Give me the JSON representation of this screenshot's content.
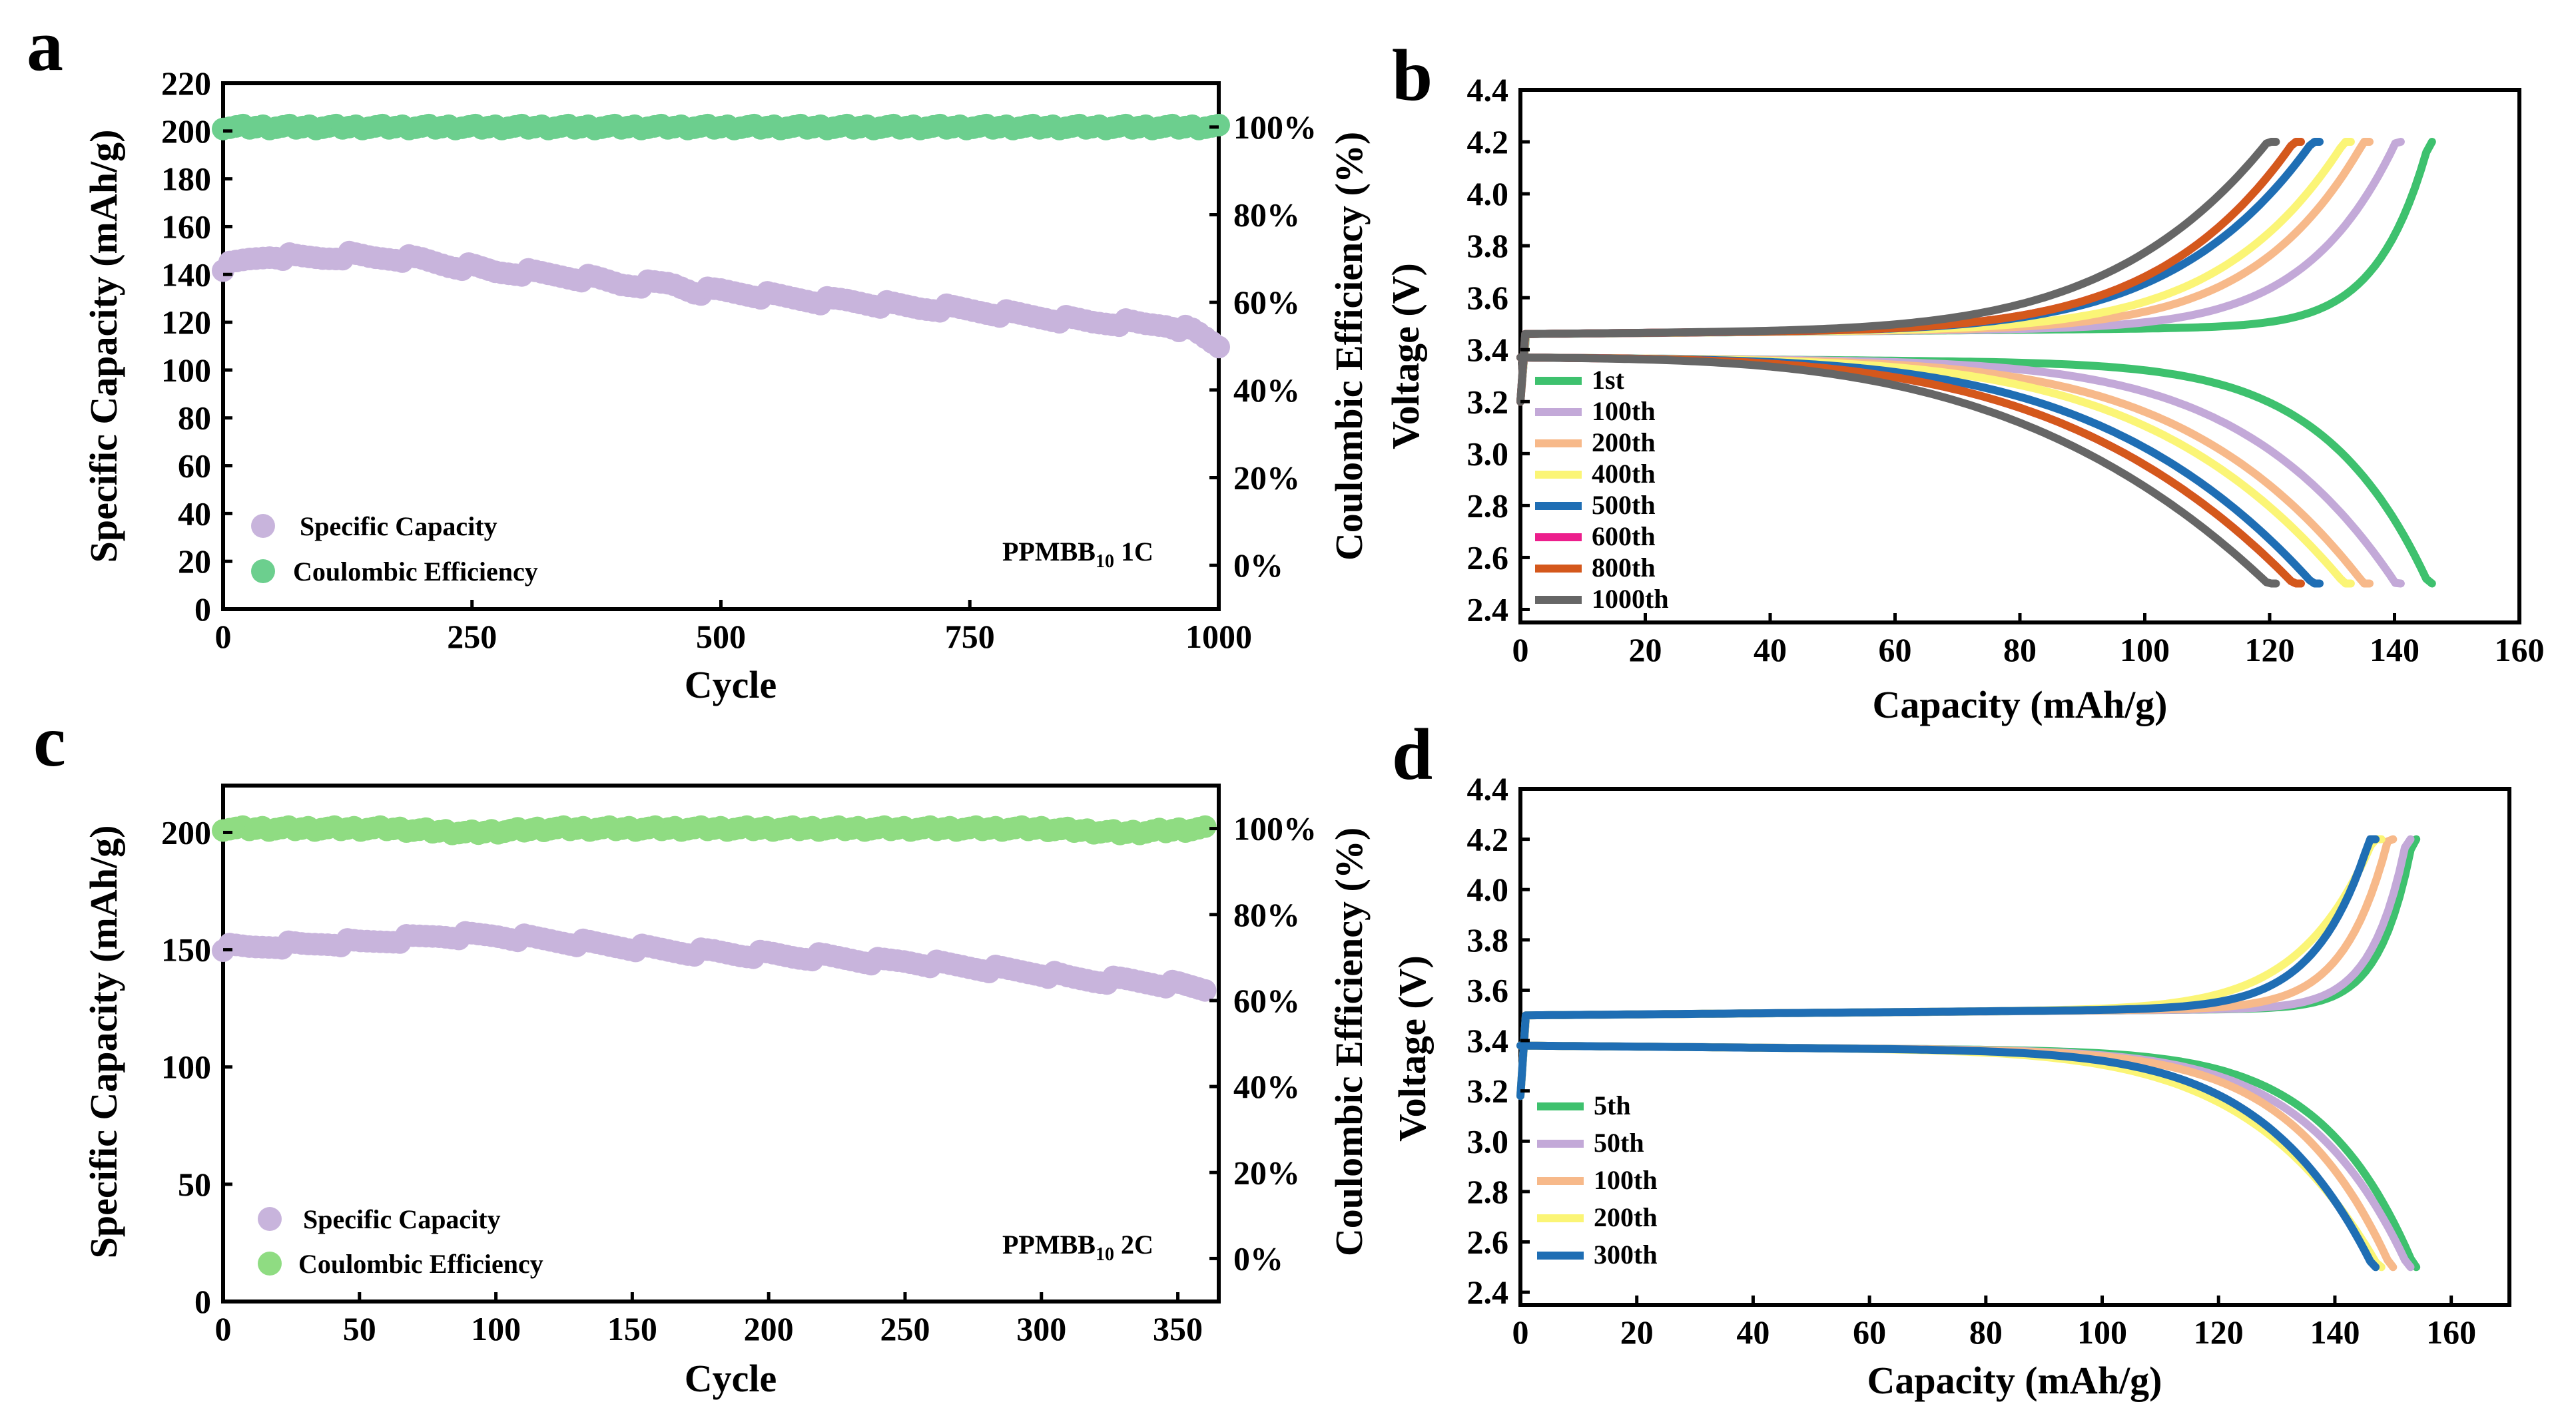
{
  "figure": {
    "panels": [
      {
        "letter": "a",
        "annotation": {
          "base": "PPMBB",
          "sub": "10",
          "tail": " 1C"
        }
      },
      {
        "letter": "b"
      },
      {
        "letter": "c",
        "annotation": {
          "base": "PPMBB",
          "sub": "10",
          "tail": " 2C"
        }
      },
      {
        "letter": "d"
      }
    ]
  },
  "chart_data": [
    {
      "panel": "a",
      "type": "scatter",
      "xlabel": "Cycle",
      "ylabel": "Specific Capacity (mAh/g)",
      "y2label": "Coulombic Efficiency (%)",
      "xlim": [
        0,
        1000
      ],
      "ylim": [
        0,
        220
      ],
      "y2lim": [
        -0.1,
        1.1
      ],
      "xticks": [
        0,
        250,
        500,
        750,
        1000
      ],
      "yticks": [
        0,
        20,
        40,
        60,
        80,
        100,
        120,
        140,
        160,
        180,
        200,
        220
      ],
      "y2ticks": [
        {
          "v": 0,
          "label": "0%"
        },
        {
          "v": 0.2,
          "label": "20%"
        },
        {
          "v": 0.4,
          "label": "40%"
        },
        {
          "v": 0.6,
          "label": "60%"
        },
        {
          "v": 0.8,
          "label": "80%"
        },
        {
          "v": 1.0,
          "label": "100%"
        }
      ],
      "series": [
        {
          "name": "Specific Capacity",
          "color": "#c8b4dc",
          "points": [
            [
              0,
              143
            ],
            [
              25,
              146
            ],
            [
              50,
              148
            ],
            [
              75,
              147
            ],
            [
              100,
              147
            ],
            [
              125,
              148
            ],
            [
              150,
              147
            ],
            [
              175,
              147
            ],
            [
              200,
              146
            ],
            [
              225,
              144
            ],
            [
              250,
              143
            ],
            [
              275,
              141
            ],
            [
              300,
              141
            ],
            [
              325,
              140
            ],
            [
              350,
              139
            ],
            [
              375,
              138
            ],
            [
              400,
              136
            ],
            [
              425,
              136
            ],
            [
              450,
              136
            ],
            [
              475,
              133
            ],
            [
              500,
              133
            ],
            [
              525,
              132
            ],
            [
              550,
              131
            ],
            [
              575,
              130
            ],
            [
              600,
              129
            ],
            [
              625,
              129
            ],
            [
              650,
              128
            ],
            [
              675,
              127
            ],
            [
              700,
              126
            ],
            [
              725,
              126
            ],
            [
              750,
              125
            ],
            [
              775,
              124
            ],
            [
              800,
              123
            ],
            [
              825,
              122
            ],
            [
              850,
              121
            ],
            [
              875,
              120
            ],
            [
              900,
              120
            ],
            [
              925,
              119
            ],
            [
              950,
              119
            ],
            [
              975,
              116
            ],
            [
              1000,
              110
            ]
          ]
        },
        {
          "name": "Coulombic Efficiency",
          "color": "#6ccf8e",
          "axis": "y2",
          "points": [
            [
              0,
              1.0
            ],
            [
              50,
              1.0
            ],
            [
              100,
              1.0
            ],
            [
              150,
              1.0
            ],
            [
              200,
              1.0
            ],
            [
              250,
              1.0
            ],
            [
              300,
              1.0
            ],
            [
              350,
              1.0
            ],
            [
              400,
              1.0
            ],
            [
              450,
              1.0
            ],
            [
              500,
              1.0
            ],
            [
              550,
              1.0
            ],
            [
              600,
              1.0
            ],
            [
              650,
              1.0
            ],
            [
              700,
              1.0
            ],
            [
              750,
              1.0
            ],
            [
              800,
              1.0
            ],
            [
              850,
              1.0
            ],
            [
              900,
              1.0
            ],
            [
              950,
              1.0
            ],
            [
              1000,
              1.0
            ]
          ]
        }
      ]
    },
    {
      "panel": "b",
      "type": "line",
      "xlabel": "Capacity (mAh/g)",
      "ylabel": "Voltage (V)",
      "xlim": [
        0,
        160
      ],
      "ylim": [
        2.35,
        4.4
      ],
      "xticks": [
        0,
        20,
        40,
        60,
        80,
        100,
        120,
        140,
        160
      ],
      "yticks": [
        2.4,
        2.6,
        2.8,
        3.0,
        3.2,
        3.4,
        3.6,
        3.8,
        4.0,
        4.2,
        4.4
      ],
      "series": [
        {
          "name": "1st",
          "color": "#3ec16e",
          "capacity": 146
        },
        {
          "name": "100th",
          "color": "#c3a9d8",
          "capacity": 141
        },
        {
          "name": "200th",
          "color": "#f7b98a",
          "capacity": 136
        },
        {
          "name": "400th",
          "color": "#fbf576",
          "capacity": 133
        },
        {
          "name": "500th",
          "color": "#1f6eb4",
          "capacity": 128
        },
        {
          "name": "600th",
          "color": "#ec1e8c",
          "capacity": 125
        },
        {
          "name": "800th",
          "color": "#d4581c",
          "capacity": 125
        },
        {
          "name": "1000th",
          "color": "#666666",
          "capacity": 121
        }
      ]
    },
    {
      "panel": "c",
      "type": "scatter",
      "xlabel": "Cycle",
      "ylabel": "Specific Capacity (mAh/g)",
      "y2label": "Coulombic Efficiency (%)",
      "xlim": [
        0,
        365
      ],
      "ylim": [
        0,
        220
      ],
      "y2lim": [
        -0.1,
        1.1
      ],
      "xticks": [
        0,
        50,
        100,
        150,
        200,
        250,
        300,
        350
      ],
      "yticks": [
        0,
        50,
        100,
        150,
        200
      ],
      "y2ticks": [
        {
          "v": 0,
          "label": "0%"
        },
        {
          "v": 0.2,
          "label": "20%"
        },
        {
          "v": 0.4,
          "label": "40%"
        },
        {
          "v": 0.6,
          "label": "60%"
        },
        {
          "v": 0.8,
          "label": "80%"
        },
        {
          "v": 1.0,
          "label": "100%"
        }
      ],
      "series": [
        {
          "name": "Specific Capacity",
          "color": "#c8b4dc",
          "points": [
            [
              0,
              151
            ],
            [
              10,
              151
            ],
            [
              20,
              152
            ],
            [
              30,
              152
            ],
            [
              40,
              153
            ],
            [
              50,
              153
            ],
            [
              60,
              154
            ],
            [
              70,
              155
            ],
            [
              80,
              156
            ],
            [
              90,
              156
            ],
            [
              100,
              156
            ],
            [
              110,
              155
            ],
            [
              120,
              154
            ],
            [
              130,
              153
            ],
            [
              140,
              152
            ],
            [
              150,
              151
            ],
            [
              160,
              150
            ],
            [
              170,
              149
            ],
            [
              180,
              149
            ],
            [
              190,
              148
            ],
            [
              200,
              148
            ],
            [
              210,
              147
            ],
            [
              220,
              147
            ],
            [
              230,
              146
            ],
            [
              240,
              145
            ],
            [
              250,
              145
            ],
            [
              260,
              144
            ],
            [
              270,
              143
            ],
            [
              280,
              142
            ],
            [
              290,
              141
            ],
            [
              300,
              140
            ],
            [
              310,
              138
            ],
            [
              320,
              137
            ],
            [
              330,
              137
            ],
            [
              340,
              136
            ],
            [
              350,
              135
            ],
            [
              360,
              133
            ]
          ]
        },
        {
          "name": "Coulombic Efficiency",
          "color": "#8fdc82",
          "axis": "y2",
          "points": [
            [
              0,
              1.0
            ],
            [
              30,
              1.0
            ],
            [
              60,
              1.0
            ],
            [
              90,
              0.99
            ],
            [
              120,
              1.0
            ],
            [
              150,
              1.0
            ],
            [
              180,
              1.0
            ],
            [
              210,
              1.0
            ],
            [
              240,
              1.0
            ],
            [
              270,
              1.0
            ],
            [
              300,
              1.0
            ],
            [
              330,
              0.99
            ],
            [
              360,
              1.0
            ]
          ]
        }
      ]
    },
    {
      "panel": "d",
      "type": "line",
      "xlabel": "Capacity (mAh/g)",
      "ylabel": "Voltage (V)",
      "xlim": [
        0,
        170
      ],
      "ylim": [
        2.35,
        4.4
      ],
      "xticks": [
        0,
        20,
        40,
        60,
        80,
        100,
        120,
        140,
        160
      ],
      "yticks": [
        2.4,
        2.6,
        2.8,
        3.0,
        3.2,
        3.4,
        3.6,
        3.8,
        4.0,
        4.2,
        4.4
      ],
      "series": [
        {
          "name": "5th",
          "color": "#3ec16e",
          "capacity": 154
        },
        {
          "name": "50th",
          "color": "#c3a9d8",
          "capacity": 153
        },
        {
          "name": "100th",
          "color": "#f7b98a",
          "capacity": 150
        },
        {
          "name": "200th",
          "color": "#fbf576",
          "capacity": 148
        },
        {
          "name": "300th",
          "color": "#1f6eb4",
          "capacity": 147
        }
      ]
    }
  ]
}
